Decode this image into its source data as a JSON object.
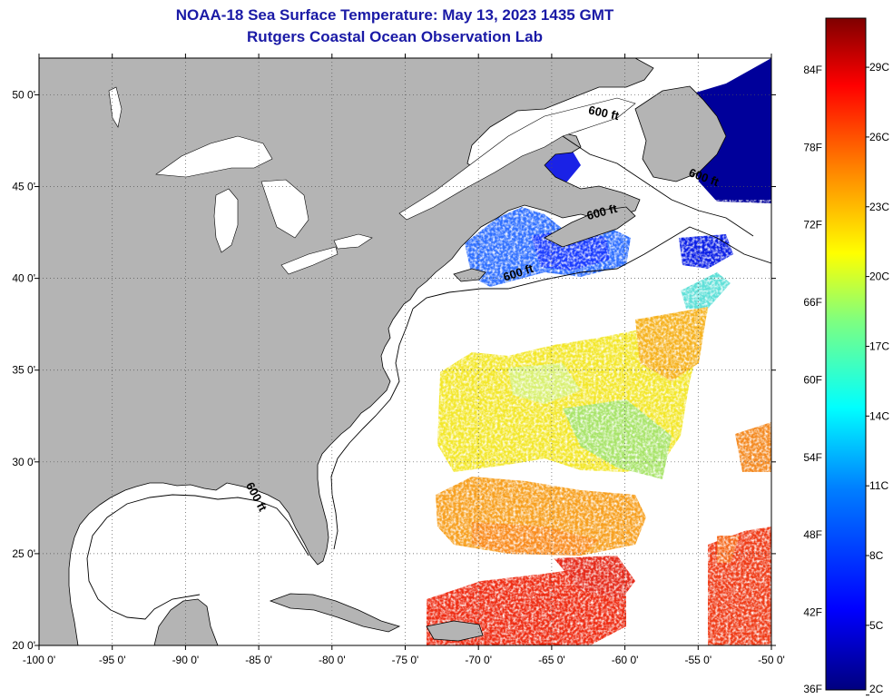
{
  "title": {
    "line1": "NOAA-18 Sea Surface Temperature:  May 13, 2023 1435 GMT",
    "line2": "Rutgers Coastal Ocean Observation Lab"
  },
  "map": {
    "lon_range": [
      -100,
      -50
    ],
    "lat_range": [
      20,
      52
    ],
    "lon_ticks": [
      {
        "value": -100,
        "label": "-100 0'"
      },
      {
        "value": -95,
        "label": "-95 0'"
      },
      {
        "value": -90,
        "label": "-90 0'"
      },
      {
        "value": -85,
        "label": "-85 0'"
      },
      {
        "value": -80,
        "label": "-80 0'"
      },
      {
        "value": -75,
        "label": "-75 0'"
      },
      {
        "value": -70,
        "label": "-70 0'"
      },
      {
        "value": -65,
        "label": "-65 0'"
      },
      {
        "value": -60,
        "label": "-60 0'"
      },
      {
        "value": -55,
        "label": "-55 0'"
      },
      {
        "value": -50,
        "label": "-50 0'"
      }
    ],
    "lat_ticks": [
      {
        "value": 50,
        "label": "50 0'"
      },
      {
        "value": 45,
        "label": "45 0'"
      },
      {
        "value": 40,
        "label": "40 0'"
      },
      {
        "value": 35,
        "label": "35 0'"
      },
      {
        "value": 30,
        "label": "30 0'"
      },
      {
        "value": 25,
        "label": "25 0'"
      },
      {
        "value": 20,
        "label": "20 0'"
      }
    ],
    "land_color": "#b4b4b4",
    "grid": true,
    "depth_contour_labels": [
      {
        "text": "600 ft",
        "lon": -61.5,
        "lat": 48.8,
        "rotate": 12
      },
      {
        "text": "600 ft",
        "lon": -61.5,
        "lat": 43.4,
        "rotate": -15
      },
      {
        "text": "600 ft",
        "lon": -67.2,
        "lat": 40.1,
        "rotate": -18
      },
      {
        "text": "600 ft",
        "lon": -54.7,
        "lat": 45.3,
        "rotate": 20
      },
      {
        "text": "600 ft",
        "lon": -85.4,
        "lat": 28.0,
        "rotate": 62
      }
    ]
  },
  "colorbar": {
    "min_f": 36,
    "max_f": 88,
    "f_labels": [
      {
        "value": 84,
        "label": "84F"
      },
      {
        "value": 78,
        "label": "78F"
      },
      {
        "value": 72,
        "label": "72F"
      },
      {
        "value": 66,
        "label": "66F"
      },
      {
        "value": 60,
        "label": "60F"
      },
      {
        "value": 54,
        "label": "54F"
      },
      {
        "value": 48,
        "label": "48F"
      },
      {
        "value": 42,
        "label": "42F"
      },
      {
        "value": 36,
        "label": "36F"
      }
    ],
    "c_labels": [
      {
        "value": 29,
        "label": "29C"
      },
      {
        "value": 26,
        "label": "26C"
      },
      {
        "value": 23,
        "label": "23C"
      },
      {
        "value": 20,
        "label": "20C"
      },
      {
        "value": 17,
        "label": "17C"
      },
      {
        "value": 14,
        "label": "14C"
      },
      {
        "value": 11,
        "label": "11C"
      },
      {
        "value": 8,
        "label": "8C"
      },
      {
        "value": 5,
        "label": "5C"
      },
      {
        "value": 2,
        "label": "2C"
      }
    ],
    "colors": [
      "#00007f",
      "#0000ff",
      "#007fff",
      "#00ffff",
      "#7fff7f",
      "#ffff00",
      "#ff7f00",
      "#ff0000",
      "#7f0000"
    ]
  }
}
